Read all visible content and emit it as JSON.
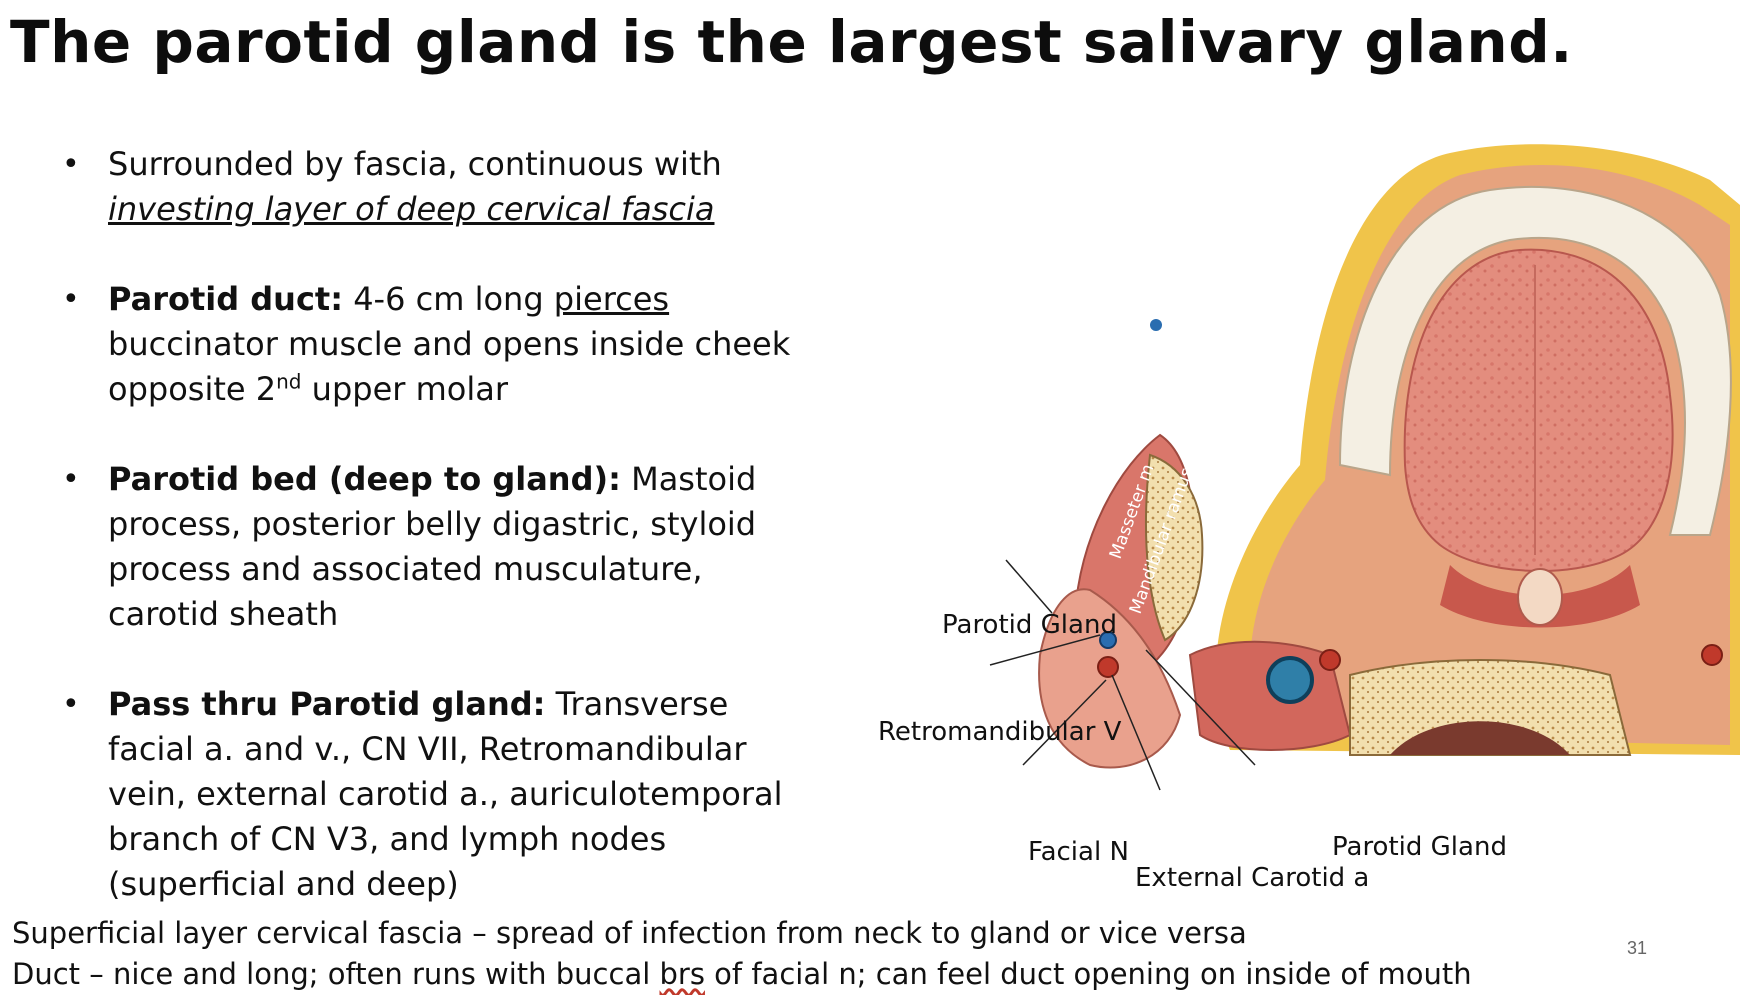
{
  "slide": {
    "title": "The parotid gland is the largest salivary gland.",
    "page_number": "31"
  },
  "bullets": [
    {
      "line1": "Surrounded by fascia, continuous with",
      "emph": "investing layer of deep cervical fascia"
    },
    {
      "bold": "Parotid duct:",
      "t1": " 4-6 cm long ",
      "u": "pierces",
      "t2": " buccinator muscle and opens inside cheek opposite 2",
      "sup": "nd",
      "t3": " upper molar"
    },
    {
      "bold": "Parotid bed (deep to gland):",
      "text": " Mastoid process, posterior belly digastric, styloid process and associated musculature, carotid sheath"
    },
    {
      "bold": "Pass thru Parotid gland:",
      "text": " Transverse facial a. and v., CN VII, Retromandibular vein, external carotid a., auriculotemporal branch of CN V3, and lymph nodes (superficial and deep)"
    }
  ],
  "notes": {
    "line1": "Superficial layer cervical fascia – spread of infection from neck to gland or vice versa",
    "line2_a": "Duct – nice and long; often runs with buccal ",
    "line2_b": "brs",
    "line2_c": " of facial n; can feel duct opening on inside of mouth"
  },
  "figure": {
    "labels": {
      "parotid_gland_left": "Parotid Gland",
      "retromandibular_v": "Retromandibular V",
      "facial_n": "Facial N",
      "external_carotid_a": "External Carotid a",
      "parotid_gland_right": "Parotid Gland"
    },
    "inner_labels": {
      "masseter": "Masseter m",
      "mandibular_ramus": "Mandibular ramus"
    }
  }
}
